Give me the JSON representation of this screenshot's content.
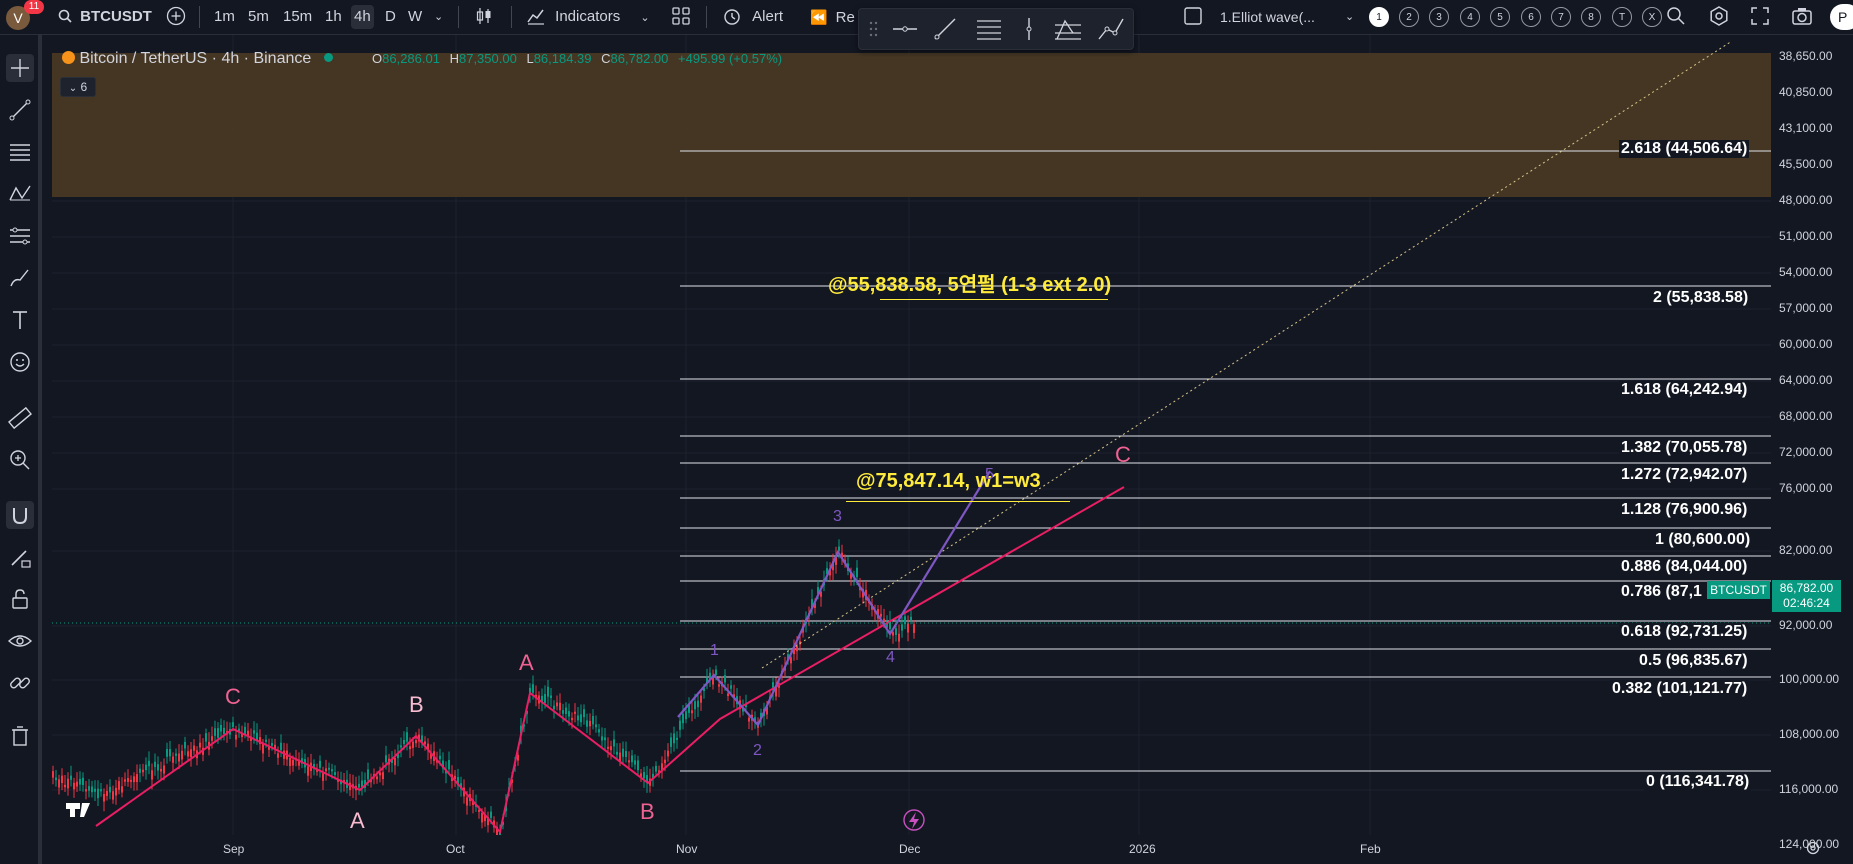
{
  "toolbar": {
    "avatar_letter": "V",
    "notification_count": "11",
    "symbol": "BTCUSDT",
    "intervals": [
      "1m",
      "5m",
      "15m",
      "1h",
      "4h",
      "D",
      "W"
    ],
    "active_interval": "4h",
    "indicators_label": "Indicators",
    "alert_label": "Alert",
    "replay_label": "Re",
    "layout_name": "1.Elliot wave(...",
    "wave_buttons": [
      "1",
      "2",
      "3",
      "4",
      "5",
      "6",
      "7",
      "8",
      "T",
      "X"
    ],
    "profile_label": "P"
  },
  "legend": {
    "title": "Bitcoin / TetherUS · 4h · Binance",
    "o_label": "O",
    "o": "86,286.01",
    "h_label": "H",
    "h": "87,350.00",
    "l_label": "L",
    "l": "86,184.39",
    "c_label": "C",
    "c": "86,782.00",
    "change": "+495.99 (+0.57%)",
    "indicator_count": "6"
  },
  "price_axis": [
    "38,650.00",
    "40,850.00",
    "43,100.00",
    "45,500.00",
    "48,000.00",
    "51,000.00",
    "54,000.00",
    "57,000.00",
    "60,000.00",
    "64,000.00",
    "68,000.00",
    "72,000.00",
    "76,000.00",
    "82,000.00",
    "86,782.00",
    "92,000.00",
    "100,000.00",
    "108,000.00",
    "116,000.00",
    "124,000.00"
  ],
  "current_price": {
    "price": "86,782.00",
    "countdown": "02:46:24",
    "symbol": "BTCUSDT"
  },
  "time_axis": [
    "Sep",
    "Oct",
    "Nov",
    "Dec",
    "2026",
    "Feb"
  ],
  "fib_levels": [
    {
      "ratio": "2.618",
      "value": "44,506.64",
      "label": "2.618 (44,506.64)"
    },
    {
      "ratio": "2",
      "value": "55,838.58",
      "label": "2 (55,838.58)"
    },
    {
      "ratio": "1.618",
      "value": "64,242.94",
      "label": "1.618 (64,242.94)"
    },
    {
      "ratio": "1.382",
      "value": "70,055.78",
      "label": "1.382 (70,055.78)"
    },
    {
      "ratio": "1.272",
      "value": "72,942.07",
      "label": "1.272 (72,942.07)"
    },
    {
      "ratio": "1.128",
      "value": "76,900.96",
      "label": "1.128 (76,900.96)"
    },
    {
      "ratio": "1",
      "value": "80,600.00",
      "label": "1 (80,600.00)"
    },
    {
      "ratio": "0.886",
      "value": "84,044.00",
      "label": "0.886 (84,044.00)"
    },
    {
      "ratio": "0.786",
      "value": "87,1",
      "label": "0.786 (87,1"
    },
    {
      "ratio": "0.618",
      "value": "92,731.25",
      "label": "0.618 (92,731.25)"
    },
    {
      "ratio": "0.5",
      "value": "96,835.67",
      "label": "0.5 (96,835.67)"
    },
    {
      "ratio": "0.382",
      "value": "101,121.77",
      "label": "0.382 (101,121.77)"
    },
    {
      "ratio": "0",
      "value": "116,341.78",
      "label": "0 (116,341.78)"
    }
  ],
  "notes": {
    "target1": "@55,838.58, 5연펄 (1-3 ext 2.0)",
    "target2": "@75,847.14, w1=w3"
  },
  "waves": {
    "c1": "C",
    "a1": "A",
    "b1": "B",
    "a2": "A",
    "b2": "B",
    "c2": "C",
    "w1": "1",
    "w2": "2",
    "w3": "3",
    "w4": "4",
    "w5": "5"
  },
  "colors": {
    "background": "#131722",
    "zone": "#4a3a24",
    "up": "#089981",
    "down": "#f23645",
    "abc_line": "#e91e63",
    "impulse_line": "#7e57c2",
    "note": "#ffeb3b"
  }
}
